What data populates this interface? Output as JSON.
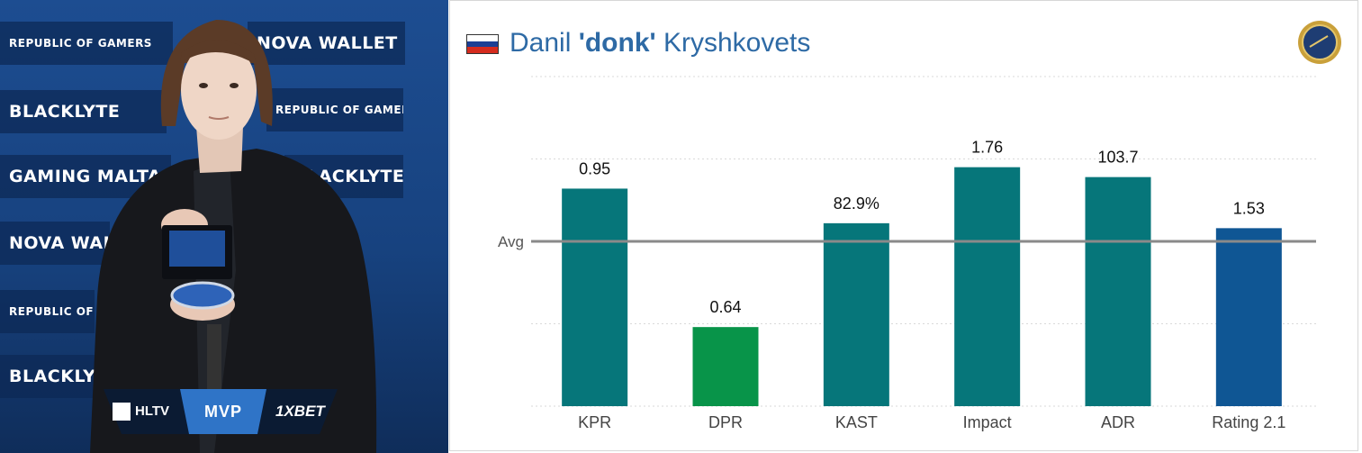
{
  "photo": {
    "sponsor_tiles": [
      {
        "text": "REPUBLIC OF GAMERS"
      },
      {
        "text": "NOVA WALLET"
      },
      {
        "text": "BLACKLYTE"
      },
      {
        "text": "REPUBLIC OF GAMERS"
      },
      {
        "text": "GAMING MALTA"
      },
      {
        "text": "BLACKLYTE"
      },
      {
        "text": "NOVA WALLET"
      },
      {
        "text": "REPUBLIC OF GAMERS"
      },
      {
        "text": "BLACKLYTE"
      }
    ],
    "banner": {
      "left": "HLTV",
      "center": "MVP",
      "right": "1XBET"
    },
    "colors": {
      "banner_blue": "#2f74c7",
      "banner_dark": "#0b1b33"
    }
  },
  "player": {
    "first_name": "Danil",
    "nickname": "'donk'",
    "last_name": "Kryshkovets",
    "flag": "russia-flag-icon",
    "flag_colors": [
      "#ffffff",
      "#1c3f94",
      "#d52b1e"
    ]
  },
  "medal": {
    "icon": "hltv-medal-icon",
    "color": "#c9a03a"
  },
  "chart_data": {
    "type": "bar",
    "categories": [
      "KPR",
      "DPR",
      "KAST",
      "Impact",
      "ADR",
      "Rating 2.1"
    ],
    "values": [
      0.95,
      0.64,
      82.9,
      1.76,
      103.7,
      1.53
    ],
    "value_labels": [
      "0.95",
      "0.64",
      "82.9%",
      "1.76",
      "103.7",
      "1.53"
    ],
    "relative_to_avg": [
      1.32,
      0.48,
      1.11,
      1.45,
      1.39,
      1.08
    ],
    "colors": [
      "#06767a",
      "#089449",
      "#06767a",
      "#06767a",
      "#06767a",
      "#0f5694"
    ],
    "reference_line": {
      "label": "Avg",
      "value": 1.0,
      "color": "#8a8a8a"
    },
    "grid": true,
    "title": "Danil 'donk' Kryshkovets",
    "xlabel": "",
    "ylabel": ""
  }
}
